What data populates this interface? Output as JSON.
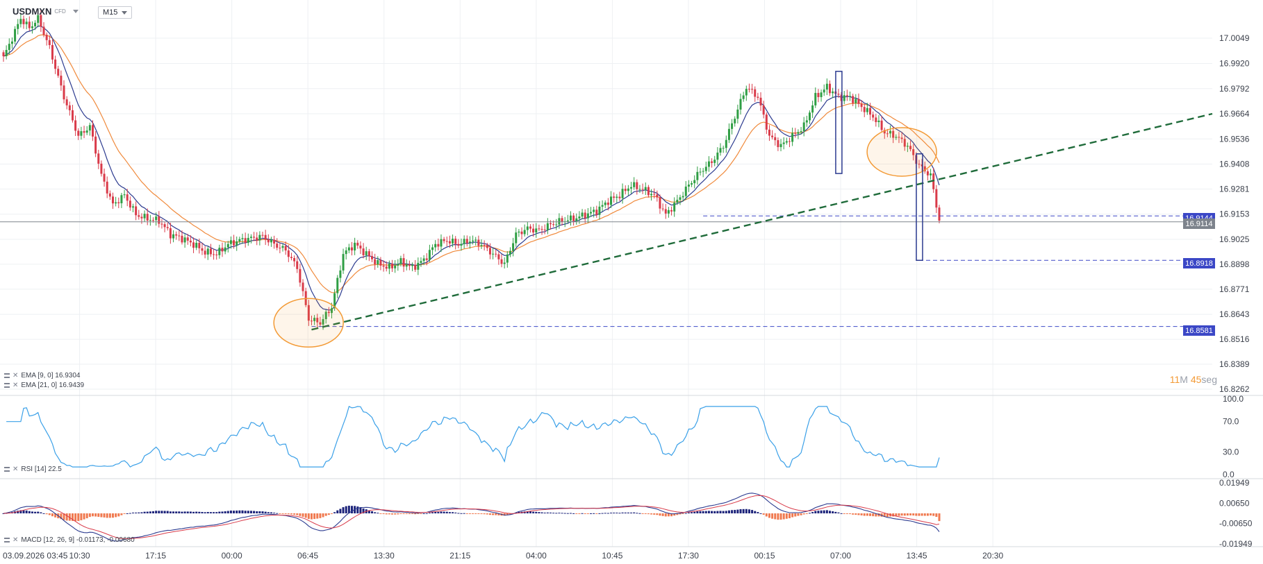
{
  "header": {
    "symbol": "USDMXN",
    "instrument_type": "CFD",
    "timeframe": "M15"
  },
  "legends": {
    "ema9": "EMA [9, 0] 16.9304",
    "ema21": "EMA [21, 0] 16.9439",
    "rsi": "RSI [14] 22.5",
    "macd": "MACD [12, 26, 9] -0.01173, -0.00680"
  },
  "countdown": {
    "minutes": "11",
    "min_unit": "M",
    "seconds": "45",
    "sec_unit": "seg"
  },
  "colors": {
    "up": "#2f9e44",
    "down": "#d93a49",
    "ema9": "#2b3a8f",
    "ema21": "#f08a3c",
    "trendline": "#1f6b3a",
    "level": "#3b47c6",
    "rsi": "#3aa0e8",
    "macd_pos": "#1c237a",
    "macd_neg": "#f07a50"
  },
  "chart_data": [
    {
      "type": "candlestick",
      "title": "USDMXN",
      "y_ticks": [
        "17.0049",
        "16.9920",
        "16.9792",
        "16.9664",
        "16.9536",
        "16.9408",
        "16.9281",
        "16.9153",
        "16.9025",
        "16.8898",
        "16.8771",
        "16.8643",
        "16.8516",
        "16.8389",
        "16.8262"
      ],
      "ylim": [
        16.8262,
        17.0049
      ],
      "x_ticks": [
        "03.09.2026 03:45",
        "10:30",
        "17:15",
        "00:00",
        "06:45",
        "13:30",
        "21:15",
        "04:00",
        "10:45",
        "17:30",
        "00:15",
        "07:00",
        "13:45",
        "20:30"
      ],
      "price_labels": {
        "last": "16.9114",
        "level_a": "16.9144",
        "level_b": "16.8918",
        "level_c": "16.8581"
      },
      "anchors": [
        [
          0,
          16.995
        ],
        [
          3,
          17.005
        ],
        [
          6,
          17.015
        ],
        [
          9,
          17.01
        ],
        [
          12,
          17.015
        ],
        [
          16,
          17.0
        ],
        [
          21,
          16.975
        ],
        [
          26,
          16.955
        ],
        [
          30,
          16.96
        ],
        [
          34,
          16.935
        ],
        [
          38,
          16.92
        ],
        [
          42,
          16.925
        ],
        [
          46,
          16.915
        ],
        [
          50,
          16.913
        ],
        [
          54,
          16.912
        ],
        [
          58,
          16.905
        ],
        [
          62,
          16.903
        ],
        [
          66,
          16.9
        ],
        [
          70,
          16.896
        ],
        [
          74,
          16.895
        ],
        [
          78,
          16.9
        ],
        [
          82,
          16.902
        ],
        [
          86,
          16.903
        ],
        [
          90,
          16.904
        ],
        [
          94,
          16.9
        ],
        [
          98,
          16.897
        ],
        [
          102,
          16.888
        ],
        [
          106,
          16.862
        ],
        [
          110,
          16.86
        ],
        [
          114,
          16.868
        ],
        [
          118,
          16.895
        ],
        [
          122,
          16.9
        ],
        [
          126,
          16.895
        ],
        [
          130,
          16.89
        ],
        [
          134,
          16.888
        ],
        [
          138,
          16.891
        ],
        [
          142,
          16.888
        ],
        [
          146,
          16.892
        ],
        [
          150,
          16.9
        ],
        [
          154,
          16.902
        ],
        [
          158,
          16.9
        ],
        [
          162,
          16.902
        ],
        [
          166,
          16.9
        ],
        [
          170,
          16.895
        ],
        [
          174,
          16.89
        ],
        [
          178,
          16.905
        ],
        [
          182,
          16.908
        ],
        [
          186,
          16.907
        ],
        [
          190,
          16.91
        ],
        [
          194,
          16.912
        ],
        [
          198,
          16.913
        ],
        [
          202,
          16.915
        ],
        [
          206,
          16.917
        ],
        [
          210,
          16.922
        ],
        [
          214,
          16.925
        ],
        [
          218,
          16.93
        ],
        [
          222,
          16.928
        ],
        [
          226,
          16.925
        ],
        [
          230,
          16.915
        ],
        [
          234,
          16.922
        ],
        [
          238,
          16.93
        ],
        [
          242,
          16.937
        ],
        [
          246,
          16.942
        ],
        [
          250,
          16.95
        ],
        [
          254,
          16.965
        ],
        [
          258,
          16.98
        ],
        [
          262,
          16.975
        ],
        [
          266,
          16.955
        ],
        [
          270,
          16.95
        ],
        [
          274,
          16.955
        ],
        [
          278,
          16.96
        ],
        [
          282,
          16.975
        ],
        [
          286,
          16.98
        ],
        [
          290,
          16.975
        ],
        [
          294,
          16.975
        ],
        [
          298,
          16.97
        ],
        [
          302,
          16.965
        ],
        [
          306,
          16.957
        ],
        [
          310,
          16.955
        ],
        [
          314,
          16.95
        ],
        [
          318,
          16.94
        ],
        [
          322,
          16.935
        ],
        [
          325,
          16.912
        ]
      ],
      "volatility": 0.0035,
      "rsi": {
        "ylim": [
          0,
          100
        ],
        "ticks": [
          "100.0",
          "70.0",
          "30.0",
          "0.0"
        ],
        "last": 22.5
      },
      "macd": {
        "ticks": [
          "0.01949",
          "0.00650",
          "-0.00650",
          "-0.01949"
        ],
        "ylim": [
          -0.01949,
          0.01949
        ],
        "macd": -0.01173,
        "signal": -0.0068
      }
    }
  ]
}
